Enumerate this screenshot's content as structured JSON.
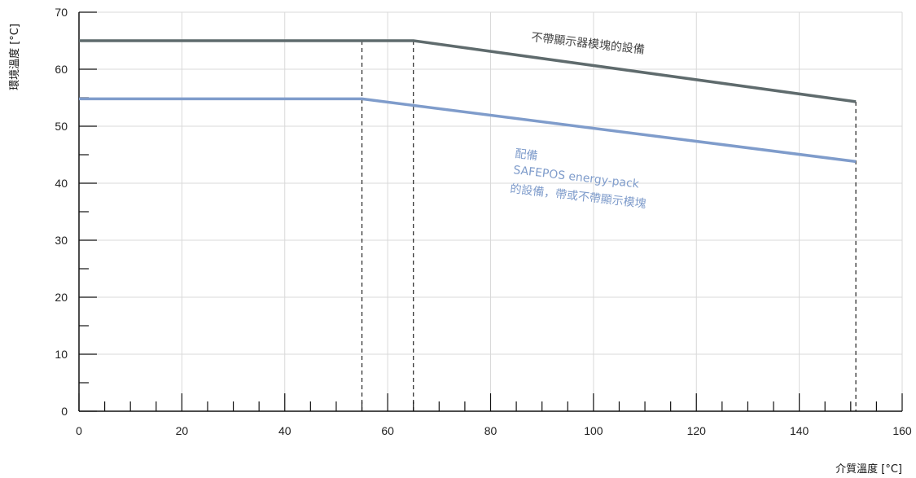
{
  "chart_data": {
    "type": "line",
    "title": "",
    "xlabel": "介質溫度 [°C]",
    "ylabel": "環境溫度 [°C]",
    "xlim": [
      0,
      160
    ],
    "ylim": [
      0,
      70
    ],
    "x_ticks": [
      0,
      20,
      40,
      60,
      80,
      100,
      120,
      140,
      160
    ],
    "y_ticks": [
      0,
      10,
      20,
      30,
      40,
      50,
      60,
      70
    ],
    "grid": true,
    "series": [
      {
        "name": "不帶顯示器模塊的設備",
        "color": "#5f6b6d",
        "points": [
          [
            0,
            65
          ],
          [
            65,
            65
          ],
          [
            151,
            54.3
          ]
        ]
      },
      {
        "name": "配備 SAFEPOS energy-pack 的設備，帶或不帶顯示模塊",
        "color": "#7f9ccb",
        "points": [
          [
            0,
            54.8
          ],
          [
            55,
            54.8
          ],
          [
            151,
            43.8
          ]
        ]
      }
    ],
    "annotations": [
      {
        "text": "不帶顯示器模塊的設備",
        "series": 0
      },
      {
        "text": "配備",
        "series": 1
      },
      {
        "text": "SAFEPOS energy-pack",
        "series": 1
      },
      {
        "text": "的設備，帶或不帶顯示模塊",
        "series": 1
      }
    ],
    "reference_lines_x": [
      55,
      65,
      151
    ]
  }
}
